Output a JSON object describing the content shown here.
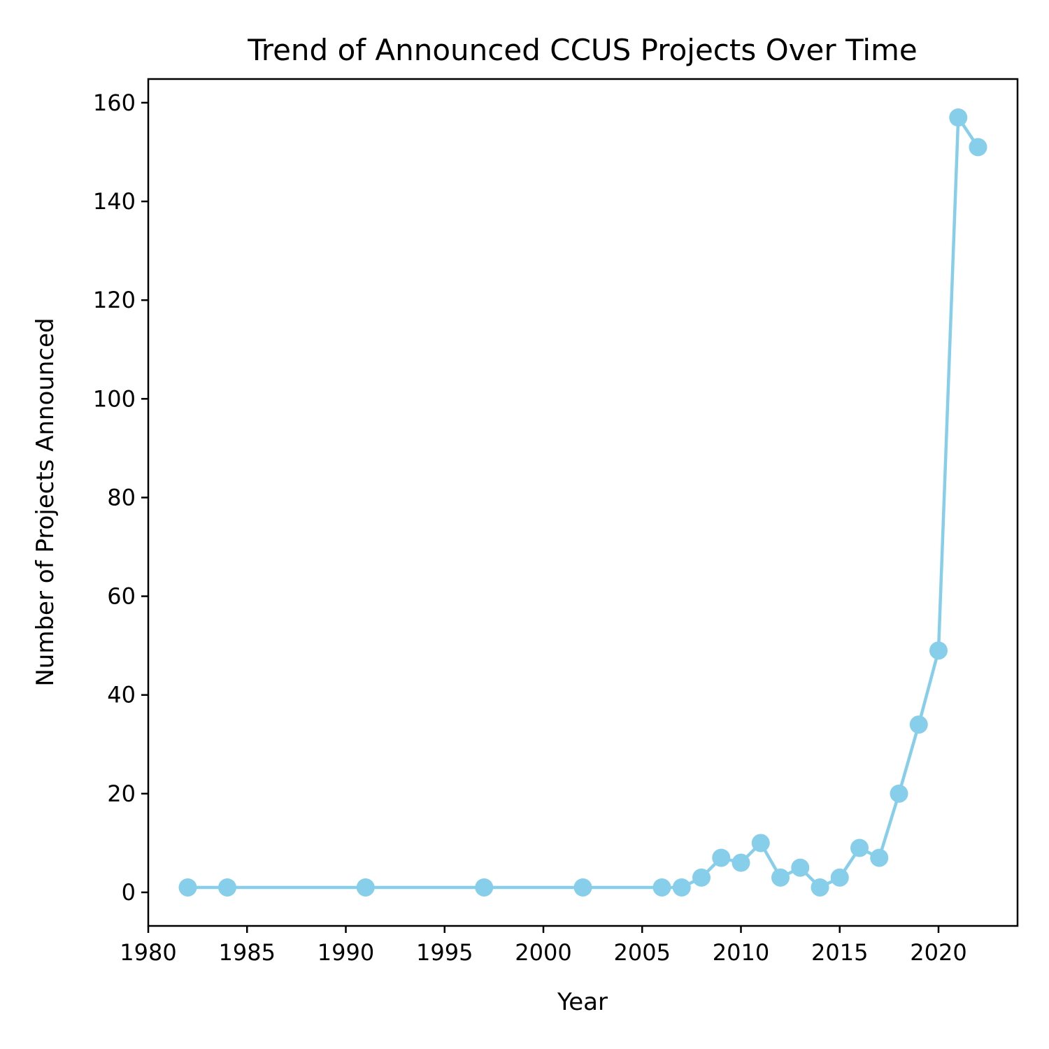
{
  "chart_data": {
    "type": "line",
    "title": "Trend of Announced CCUS Projects Over Time",
    "xlabel": "Year",
    "ylabel": "Number of Projects Announced",
    "xlim": [
      1980,
      2024
    ],
    "ylim": [
      -6.8,
      164.8
    ],
    "xticks": [
      1980,
      1985,
      1990,
      1995,
      2000,
      2005,
      2010,
      2015,
      2020
    ],
    "yticks": [
      0,
      20,
      40,
      60,
      80,
      100,
      120,
      140,
      160
    ],
    "grid": false,
    "series": [
      {
        "color": "#87ceeb",
        "marker": "circle",
        "x": [
          1982,
          1984,
          1991,
          1997,
          2002,
          2006,
          2007,
          2008,
          2009,
          2010,
          2011,
          2012,
          2013,
          2014,
          2015,
          2016,
          2017,
          2018,
          2019,
          2020,
          2021,
          2022
        ],
        "y": [
          1,
          1,
          1,
          1,
          1,
          1,
          1,
          3,
          7,
          6,
          10,
          3,
          5,
          1,
          3,
          9,
          7,
          20,
          34,
          49,
          157,
          151
        ]
      }
    ]
  }
}
